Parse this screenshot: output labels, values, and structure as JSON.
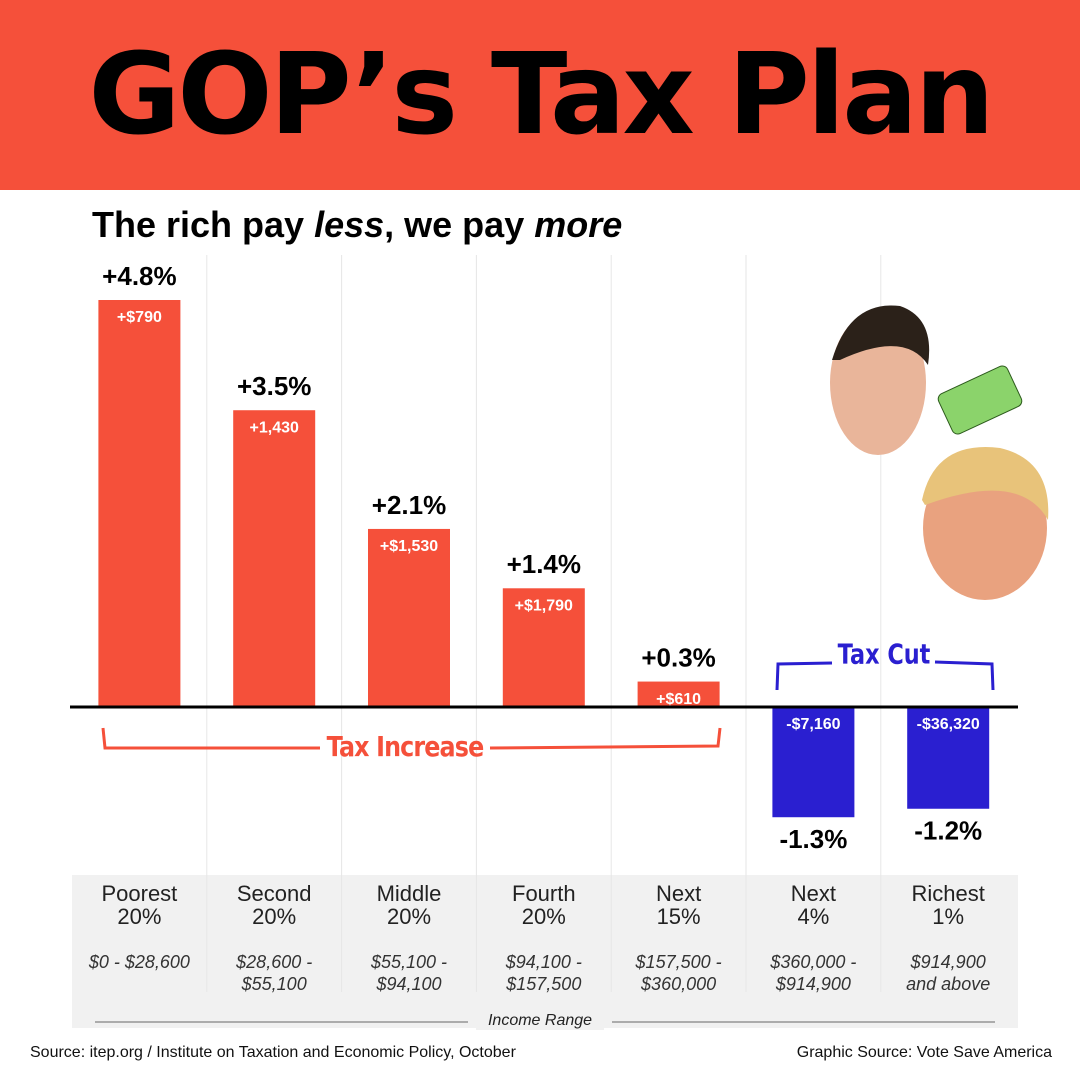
{
  "header": {
    "title": "GOP’s Tax Plan"
  },
  "chart_data": {
    "type": "bar",
    "subtitle": [
      "The rich pay ",
      "less",
      ", we pay ",
      "more"
    ],
    "categories": [
      "Poorest 20%",
      "Second 20%",
      "Middle 20%",
      "Fourth 20%",
      "Next 15%",
      "Next 4%",
      "Richest 1%"
    ],
    "income_ranges": [
      "$0 - $28,600",
      "$28,600 - $55,100",
      "$55,100 - $94,100",
      "$94,100 - $157,500",
      "$157,500 - $360,000",
      "$360,000 - $914,900",
      "$914,900 and above"
    ],
    "x_label": "Income Range",
    "values": [
      4.8,
      3.5,
      2.1,
      1.4,
      0.3,
      -1.3,
      -1.2
    ],
    "value_labels": [
      "+4.8%",
      "+3.5%",
      "+2.1%",
      "+1.4%",
      "+0.3%",
      "-1.3%",
      "-1.2%"
    ],
    "dollar_values": [
      790,
      1430,
      1530,
      1790,
      610,
      -7160,
      -36320
    ],
    "dollar_labels": [
      "+$790",
      "+1,430",
      "+$1,530",
      "+$1,790",
      "+$610",
      "-$7,160",
      "-$36,320"
    ],
    "colors": [
      "#f5503a",
      "#f5503a",
      "#f5503a",
      "#f5503a",
      "#f5503a",
      "#2a1fd0",
      "#2a1fd0"
    ],
    "annotations": [
      {
        "text": "Tax Increase",
        "color": "#f5503a"
      },
      {
        "text": "Tax Cut",
        "color": "#2a1fd0"
      }
    ]
  },
  "footer": {
    "source": "Source: itep.org / Institute on Taxation and Economic Policy, October",
    "graphic_source": "Graphic Source: Vote Save America"
  }
}
